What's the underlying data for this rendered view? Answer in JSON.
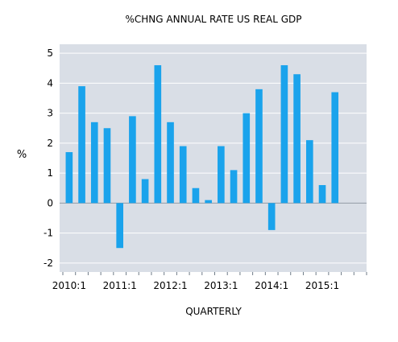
{
  "chart_data": {
    "type": "bar",
    "title": "%CHNG ANNUAL RATE US REAL GDP",
    "xlabel": "QUARTERLY",
    "ylabel": "%",
    "ylim": [
      -2.3,
      5.3
    ],
    "yticks": [
      -2,
      -1,
      0,
      1,
      2,
      3,
      4,
      5
    ],
    "grid": true,
    "legend": "none",
    "categories": [
      "2010:1",
      "2010:2",
      "2010:3",
      "2010:4",
      "2011:1",
      "2011:2",
      "2011:3",
      "2011:4",
      "2012:1",
      "2012:2",
      "2012:3",
      "2012:4",
      "2013:1",
      "2013:2",
      "2013:3",
      "2013:4",
      "2014:1",
      "2014:2",
      "2014:3",
      "2014:4",
      "2015:1",
      "2015:2"
    ],
    "x_tick_labels": [
      "2010:1",
      "2011:1",
      "2012:1",
      "2013:1",
      "2014:1",
      "2015:1"
    ],
    "values": [
      1.7,
      3.9,
      2.7,
      2.5,
      -1.5,
      2.9,
      0.8,
      4.6,
      2.7,
      1.9,
      0.5,
      0.1,
      1.9,
      1.1,
      3.0,
      3.8,
      -0.9,
      4.6,
      4.3,
      2.1,
      0.6,
      3.7
    ],
    "colors": {
      "bar": "#1aa3ec",
      "plot_background": "#d9dee6",
      "gridline": "#ffffff",
      "zero_line": "#8c96a0"
    }
  }
}
